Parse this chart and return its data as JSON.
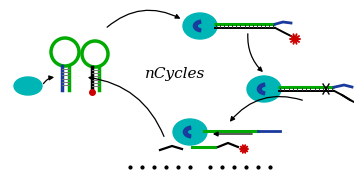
{
  "title": "nCycles",
  "title_fontsize": 11,
  "bg_color": "#ffffff",
  "teal_color": "#00B5B5",
  "green_color": "#00AA00",
  "blue_color": "#1a3a9e",
  "black": "#000000",
  "red_color": "#CC0000",
  "gray_color": "#888888",
  "figsize": [
    3.54,
    1.89
  ],
  "dpi": 100,
  "xlim": [
    0,
    354
  ],
  "ylim": [
    0,
    189
  ]
}
